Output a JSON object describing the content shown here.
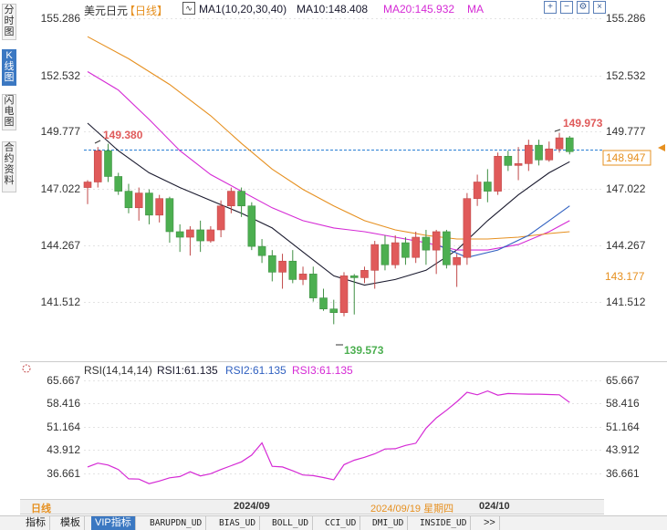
{
  "side_tabs": [
    {
      "label": "分时图",
      "active": false
    },
    {
      "label": "K线图",
      "active": true
    },
    {
      "label": "闪电图",
      "active": false
    },
    {
      "label": "合约资料",
      "active": false
    }
  ],
  "header": {
    "symbol": "美元日元",
    "period": "【日线】",
    "ma_title": "MA1(10,20,30,40)",
    "ma10": "MA10:148.408",
    "ma20": "MA20:145.932",
    "ma_extra": "MA"
  },
  "toolbar_icons": [
    "zoom-in-icon",
    "zoom-out-icon",
    "settings-icon",
    "close-icon"
  ],
  "colors": {
    "up": "#e05a5a",
    "down": "#4caf50",
    "ma10": "#1a1a2e",
    "ma20": "#d52ad5",
    "ma30": "#e69020",
    "ma40": "#3060c0",
    "rsi": "#d52ad5",
    "price_line": "#2a7fd4",
    "axis_text": "#333333"
  },
  "price_axis": {
    "labels": [
      "155.286",
      "152.532",
      "149.777",
      "147.022",
      "144.267",
      "141.512"
    ],
    "current_price": "148.947",
    "ma_tag": "143.177",
    "high_label": "149.973",
    "left_high_label": "149.380",
    "low_label": "139.573"
  },
  "rsi_panel": {
    "title": "RSI(14,14,14)",
    "rsi1": "RSI1:61.135",
    "rsi2": "RSI2:61.135",
    "rsi3": "RSI3:61.135",
    "axis_labels": [
      "65.667",
      "58.416",
      "51.164",
      "43.912",
      "36.661"
    ]
  },
  "chart_data": {
    "type": "candlestick",
    "ylim": [
      138.6,
      156.2
    ],
    "candles": [
      {
        "o": 147.0,
        "h": 147.4,
        "l": 146.1,
        "c": 147.3
      },
      {
        "o": 147.3,
        "h": 149.2,
        "l": 147.0,
        "c": 149.0
      },
      {
        "o": 149.0,
        "h": 149.38,
        "l": 147.3,
        "c": 147.6
      },
      {
        "o": 147.6,
        "h": 147.8,
        "l": 146.6,
        "c": 146.8
      },
      {
        "o": 146.8,
        "h": 147.2,
        "l": 145.6,
        "c": 145.9
      },
      {
        "o": 145.9,
        "h": 147.0,
        "l": 145.2,
        "c": 146.7
      },
      {
        "o": 146.7,
        "h": 146.9,
        "l": 145.0,
        "c": 145.5
      },
      {
        "o": 145.5,
        "h": 146.6,
        "l": 145.1,
        "c": 146.4
      },
      {
        "o": 146.4,
        "h": 146.5,
        "l": 144.0,
        "c": 144.6
      },
      {
        "o": 144.6,
        "h": 145.0,
        "l": 143.5,
        "c": 144.3
      },
      {
        "o": 144.3,
        "h": 144.9,
        "l": 143.3,
        "c": 144.7
      },
      {
        "o": 144.7,
        "h": 145.2,
        "l": 143.5,
        "c": 144.1
      },
      {
        "o": 144.1,
        "h": 144.9,
        "l": 144.0,
        "c": 144.7
      },
      {
        "o": 144.7,
        "h": 146.3,
        "l": 144.3,
        "c": 146.0
      },
      {
        "o": 146.0,
        "h": 147.0,
        "l": 145.6,
        "c": 146.8
      },
      {
        "o": 146.8,
        "h": 147.0,
        "l": 145.4,
        "c": 146.0
      },
      {
        "o": 146.0,
        "h": 146.2,
        "l": 143.6,
        "c": 143.8
      },
      {
        "o": 143.8,
        "h": 144.2,
        "l": 142.9,
        "c": 143.3
      },
      {
        "o": 143.3,
        "h": 143.6,
        "l": 141.9,
        "c": 142.4
      },
      {
        "o": 142.4,
        "h": 143.4,
        "l": 141.5,
        "c": 143.0
      },
      {
        "o": 143.0,
        "h": 143.6,
        "l": 141.8,
        "c": 142.0
      },
      {
        "o": 142.0,
        "h": 142.7,
        "l": 141.7,
        "c": 142.3
      },
      {
        "o": 142.3,
        "h": 142.7,
        "l": 140.8,
        "c": 141.0
      },
      {
        "o": 141.0,
        "h": 141.5,
        "l": 140.3,
        "c": 140.4
      },
      {
        "o": 140.4,
        "h": 140.9,
        "l": 139.57,
        "c": 140.2
      },
      {
        "o": 140.2,
        "h": 142.4,
        "l": 140.0,
        "c": 142.2
      },
      {
        "o": 142.2,
        "h": 142.3,
        "l": 140.1,
        "c": 142.1
      },
      {
        "o": 142.1,
        "h": 142.7,
        "l": 141.8,
        "c": 142.5
      },
      {
        "o": 142.5,
        "h": 144.1,
        "l": 141.5,
        "c": 143.9
      },
      {
        "o": 143.9,
        "h": 144.4,
        "l": 142.5,
        "c": 142.8
      },
      {
        "o": 142.8,
        "h": 144.4,
        "l": 142.6,
        "c": 144.0
      },
      {
        "o": 144.0,
        "h": 144.3,
        "l": 142.8,
        "c": 143.2
      },
      {
        "o": 143.2,
        "h": 144.6,
        "l": 142.9,
        "c": 144.3
      },
      {
        "o": 144.3,
        "h": 144.7,
        "l": 142.8,
        "c": 143.6
      },
      {
        "o": 143.6,
        "h": 144.7,
        "l": 142.3,
        "c": 144.6
      },
      {
        "o": 144.6,
        "h": 144.7,
        "l": 142.6,
        "c": 142.8
      },
      {
        "o": 142.8,
        "h": 143.4,
        "l": 141.6,
        "c": 143.2
      },
      {
        "o": 143.2,
        "h": 146.7,
        "l": 142.8,
        "c": 146.4
      },
      {
        "o": 146.4,
        "h": 147.7,
        "l": 146.0,
        "c": 147.3
      },
      {
        "o": 147.3,
        "h": 148.0,
        "l": 146.2,
        "c": 146.8
      },
      {
        "o": 146.8,
        "h": 148.9,
        "l": 146.6,
        "c": 148.7
      },
      {
        "o": 148.7,
        "h": 149.0,
        "l": 147.9,
        "c": 148.2
      },
      {
        "o": 148.2,
        "h": 149.2,
        "l": 147.4,
        "c": 148.3
      },
      {
        "o": 148.3,
        "h": 149.6,
        "l": 147.9,
        "c": 149.3
      },
      {
        "o": 149.3,
        "h": 149.6,
        "l": 148.2,
        "c": 148.5
      },
      {
        "o": 148.5,
        "h": 149.5,
        "l": 148.4,
        "c": 149.1
      },
      {
        "o": 149.1,
        "h": 149.97,
        "l": 148.9,
        "c": 149.7
      },
      {
        "o": 149.7,
        "h": 149.8,
        "l": 148.8,
        "c": 148.95
      }
    ],
    "ma_lines": [
      {
        "name": "MA10",
        "points": [
          [
            0,
            150.5
          ],
          [
            3,
            149.0
          ],
          [
            6,
            147.8
          ],
          [
            9,
            147.0
          ],
          [
            12,
            146.3
          ],
          [
            15,
            145.6
          ],
          [
            18,
            144.8
          ],
          [
            21,
            143.5
          ],
          [
            24,
            142.2
          ],
          [
            27,
            141.7
          ],
          [
            30,
            142.0
          ],
          [
            33,
            142.5
          ],
          [
            36,
            143.6
          ],
          [
            39,
            145.2
          ],
          [
            42,
            146.6
          ],
          [
            45,
            147.8
          ],
          [
            47,
            148.4
          ]
        ]
      },
      {
        "name": "MA20",
        "points": [
          [
            0,
            153.3
          ],
          [
            3,
            152.3
          ],
          [
            6,
            150.7
          ],
          [
            9,
            149.0
          ],
          [
            12,
            147.7
          ],
          [
            15,
            146.8
          ],
          [
            18,
            145.9
          ],
          [
            21,
            145.2
          ],
          [
            24,
            144.8
          ],
          [
            27,
            144.6
          ],
          [
            30,
            144.3
          ],
          [
            33,
            144.0
          ],
          [
            36,
            143.6
          ],
          [
            39,
            143.6
          ],
          [
            42,
            143.9
          ],
          [
            45,
            144.6
          ],
          [
            47,
            145.2
          ]
        ]
      },
      {
        "name": "MA30",
        "points": [
          [
            0,
            155.2
          ],
          [
            4,
            154.0
          ],
          [
            8,
            152.6
          ],
          [
            12,
            150.9
          ],
          [
            15,
            149.4
          ],
          [
            18,
            148.0
          ],
          [
            21,
            146.9
          ],
          [
            24,
            146.0
          ],
          [
            27,
            145.2
          ],
          [
            30,
            144.7
          ],
          [
            33,
            144.4
          ],
          [
            36,
            144.2
          ],
          [
            39,
            144.2
          ],
          [
            42,
            144.3
          ],
          [
            45,
            144.5
          ],
          [
            47,
            144.6
          ]
        ]
      },
      {
        "name": "MA40",
        "points": [
          [
            34,
            143.9
          ],
          [
            37,
            143.2
          ],
          [
            40,
            143.6
          ],
          [
            43,
            144.4
          ],
          [
            45,
            145.2
          ],
          [
            47,
            146.0
          ]
        ]
      }
    ],
    "rsi_ylim": [
      33.0,
      68.0
    ],
    "rsi_values": [
      41.0,
      42.2,
      41.6,
      40.2,
      37.3,
      37.2,
      35.8,
      36.6,
      37.6,
      38.0,
      39.5,
      38.2,
      38.9,
      40.2,
      41.4,
      42.6,
      44.7,
      48.5,
      41.2,
      41.0,
      39.8,
      38.5,
      38.3,
      37.7,
      37.0,
      41.7,
      43.1,
      44.0,
      45.1,
      46.6,
      46.7,
      47.7,
      48.4,
      53.1,
      56.3,
      58.7,
      61.3,
      64.3,
      63.5,
      64.7,
      63.4,
      63.9,
      63.8,
      63.7,
      63.7,
      63.6,
      63.5,
      61.1
    ]
  },
  "bottom_bar": {
    "period": "日线",
    "date_left": "2024/09",
    "date_cursor": "2024/09/19 星期四",
    "date_right": "024/10"
  },
  "indicator_tabs": [
    {
      "label": "指标",
      "active": false,
      "mono": false
    },
    {
      "label": "模板",
      "active": false,
      "mono": false
    },
    {
      "label": "VIP指标",
      "active": true,
      "mono": false
    },
    {
      "label": "BARUPDN_UD",
      "active": false,
      "mono": true
    },
    {
      "label": "BIAS_UD",
      "active": false,
      "mono": true
    },
    {
      "label": "BOLL_UD",
      "active": false,
      "mono": true
    },
    {
      "label": "CCI_UD",
      "active": false,
      "mono": true
    },
    {
      "label": "DMI_UD",
      "active": false,
      "mono": true
    },
    {
      "label": "INSIDE_UD",
      "active": false,
      "mono": true
    },
    {
      "label": ">>",
      "active": false,
      "mono": false
    }
  ]
}
